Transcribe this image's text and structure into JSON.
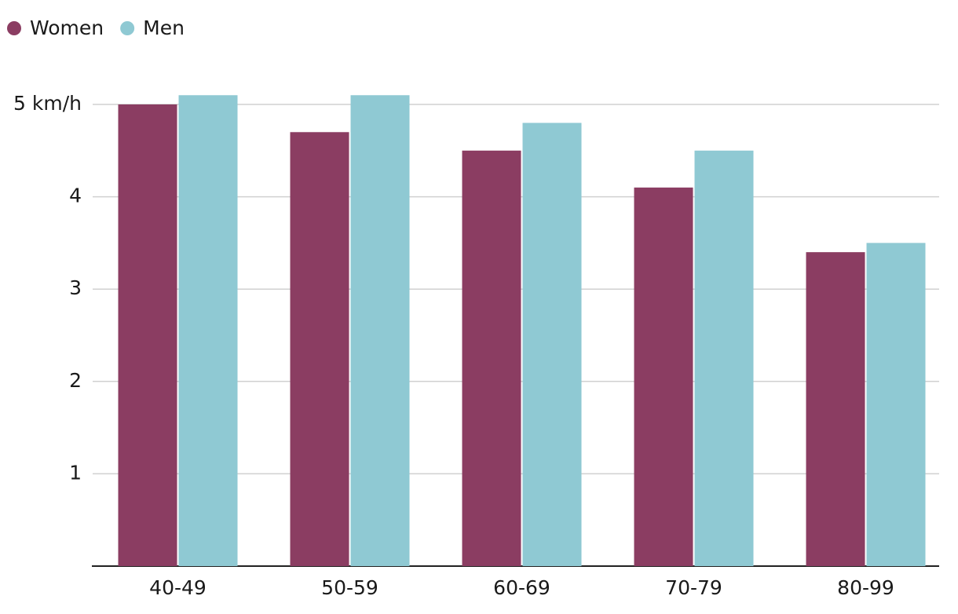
{
  "chart_data": {
    "type": "bar",
    "categories": [
      "40-49",
      "50-59",
      "60-69",
      "70-79",
      "80-99"
    ],
    "series": [
      {
        "name": "Women",
        "color": "#8b3d62",
        "values": [
          5.0,
          4.7,
          4.5,
          4.1,
          3.4
        ]
      },
      {
        "name": "Men",
        "color": "#8fc9d3",
        "values": [
          5.1,
          5.1,
          4.8,
          4.5,
          3.5
        ]
      }
    ],
    "ylim": [
      0,
      5
    ],
    "yticks": [
      1,
      2,
      3,
      4,
      {
        "value": 5,
        "label": "5 km/h"
      }
    ],
    "grid": true,
    "legend": "top-left"
  }
}
